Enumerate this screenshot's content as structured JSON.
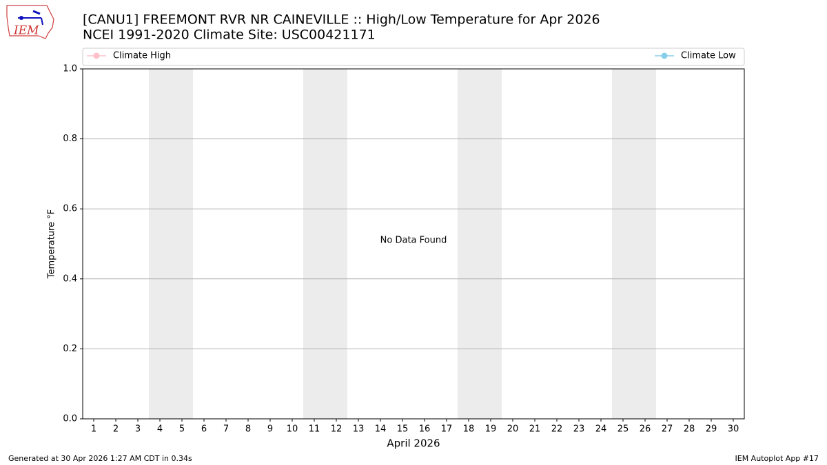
{
  "chart_data": {
    "type": "line",
    "title": "[CANU1] FREEMONT RVR NR CAINEVILLE :: High/Low Temperature for Apr 2026",
    "subtitle": "NCEI 1991-2020 Climate Site: USC00421171",
    "logo": "IEM",
    "x_label": "April 2026",
    "y_label": "Temperature °F",
    "annotation": "No Data Found",
    "footer_left": "Generated at 30 Apr 2026 1:27 AM CDT in 0.34s",
    "footer_right": "IEM Autoplot App #17",
    "x": [
      1,
      2,
      3,
      4,
      5,
      6,
      7,
      8,
      9,
      10,
      11,
      12,
      13,
      14,
      15,
      16,
      17,
      18,
      19,
      20,
      21,
      22,
      23,
      24,
      25,
      26,
      27,
      28,
      29,
      30
    ],
    "xlim": [
      0.5,
      30.5
    ],
    "xticks": [
      1,
      2,
      3,
      4,
      5,
      6,
      7,
      8,
      9,
      10,
      11,
      12,
      13,
      14,
      15,
      16,
      17,
      18,
      19,
      20,
      21,
      22,
      23,
      24,
      25,
      26,
      27,
      28,
      29,
      30
    ],
    "ylim": [
      0,
      1
    ],
    "yticks": [
      {
        "value": 0,
        "label": "0.0"
      },
      0.2,
      0.4,
      0.6,
      0.8,
      {
        "value": 1,
        "label": "1.0"
      }
    ],
    "grid": true,
    "weekend_bands": [
      [
        3.5,
        5.5
      ],
      [
        10.5,
        12.5
      ],
      [
        17.5,
        19.5
      ],
      [
        24.5,
        26.5
      ]
    ],
    "series": [
      {
        "name": "Climate High",
        "color": "#ffc0cb",
        "values": [
          null,
          null,
          null,
          null,
          null,
          null,
          null,
          null,
          null,
          null,
          null,
          null,
          null,
          null,
          null,
          null,
          null,
          null,
          null,
          null,
          null,
          null,
          null,
          null,
          null,
          null,
          null,
          null,
          null,
          null
        ]
      },
      {
        "name": "Climate Low",
        "color": "#87ceeb",
        "values": [
          null,
          null,
          null,
          null,
          null,
          null,
          null,
          null,
          null,
          null,
          null,
          null,
          null,
          null,
          null,
          null,
          null,
          null,
          null,
          null,
          null,
          null,
          null,
          null,
          null,
          null,
          null,
          null,
          null,
          null
        ]
      }
    ]
  }
}
